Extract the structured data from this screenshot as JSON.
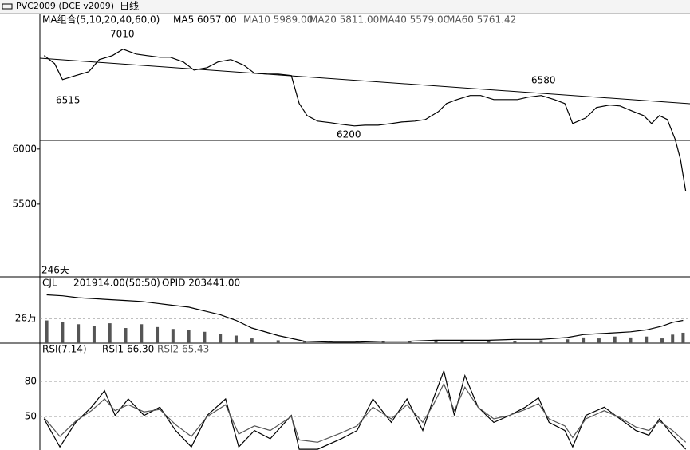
{
  "header": {
    "symbol": "PVC2009 (DCE v2009)",
    "period": "日线"
  },
  "main": {
    "indicator": "MA组合(5,10,20,40,60,0)",
    "legend": [
      "MA5 6057.00",
      "MA10 5989.00",
      "MA20 5811.00",
      "MA40 5579.00",
      "MA60 5761.42"
    ],
    "annotations": [
      "7010",
      "6515",
      "6580",
      "6200"
    ],
    "span": "246天"
  },
  "volume_panel": {
    "indicator": "CJL",
    "legend": [
      "201914.00(50:50)",
      "OPID 203441.00"
    ]
  },
  "rsi_panel": {
    "indicator": "RSI(7,14)",
    "legend": [
      "RSI1 66.30",
      "RSI2 65.43"
    ]
  },
  "chart_data": [
    {
      "type": "line",
      "xlim": [
        0,
        246
      ],
      "ylim": [
        4840,
        7230
      ],
      "yticks": [
        6000,
        5500
      ],
      "grid": false,
      "x": [
        1,
        5,
        8,
        13,
        18,
        22,
        27,
        31,
        36,
        40,
        45,
        49,
        54,
        58,
        63,
        67,
        72,
        77,
        81,
        86,
        90,
        95,
        98,
        101,
        105,
        110,
        114,
        119,
        123,
        128,
        133,
        137,
        142,
        146,
        151,
        154,
        158,
        163,
        167,
        172,
        176,
        181,
        185,
        190,
        195,
        199,
        202,
        207,
        211,
        216,
        220,
        225,
        229,
        232,
        235,
        238,
        241,
        243,
        245
      ],
      "series": [
        {
          "name": "close",
          "color": "#000000",
          "values": [
            6848,
            6775,
            6630,
            6667,
            6703,
            6812,
            6848,
            6906,
            6862,
            6848,
            6833,
            6833,
            6790,
            6717,
            6739,
            6790,
            6812,
            6761,
            6688,
            6681,
            6681,
            6667,
            6413,
            6304,
            6254,
            6239,
            6225,
            6210,
            6217,
            6217,
            6232,
            6246,
            6254,
            6268,
            6341,
            6413,
            6449,
            6486,
            6486,
            6449,
            6449,
            6449,
            6471,
            6486,
            6449,
            6413,
            6232,
            6283,
            6377,
            6399,
            6391,
            6341,
            6304,
            6232,
            6304,
            6268,
            6087,
            5906,
            5616
          ]
        }
      ]
    },
    {
      "type": "bar",
      "xlim": [
        0,
        246
      ],
      "ylim": [
        0,
        70
      ],
      "yticks": [
        {
          "value": 26,
          "label": "26万"
        }
      ],
      "grid": true,
      "x": [
        2,
        8,
        14,
        20,
        26,
        32,
        38,
        44,
        50,
        56,
        62,
        68,
        74,
        80,
        90,
        100,
        110,
        120,
        130,
        140,
        150,
        160,
        170,
        180,
        190,
        200,
        206,
        212,
        218,
        224,
        230,
        236,
        240,
        244
      ],
      "series": [
        {
          "name": "volume",
          "color": "#555555",
          "values": [
            24,
            22,
            20,
            18,
            21,
            16,
            20,
            17,
            15,
            14,
            12,
            10,
            8,
            5,
            3,
            2,
            2,
            2,
            2,
            2,
            2,
            2,
            2,
            2,
            3,
            4,
            6,
            5,
            7,
            6,
            7,
            5,
            9,
            11
          ]
        },
        {
          "name": "opid",
          "color": "#000000",
          "values": [
            51,
            50,
            48,
            47,
            46,
            45,
            44,
            42,
            40,
            38,
            34,
            30,
            24,
            16,
            8,
            2,
            1,
            1,
            2,
            2,
            3,
            3,
            3,
            4,
            4,
            6,
            9,
            10,
            11,
            12,
            14,
            18,
            22,
            24
          ]
        }
      ]
    },
    {
      "type": "line",
      "xlim": [
        0,
        246
      ],
      "ylim": [
        21.4,
        112.7
      ],
      "yticks": [
        80,
        50
      ],
      "grid": true,
      "x": [
        1,
        7,
        13,
        19,
        24,
        28,
        33,
        39,
        45,
        51,
        57,
        63,
        70,
        75,
        81,
        87,
        95,
        98,
        105,
        114,
        120,
        126,
        133,
        139,
        145,
        149,
        153,
        157,
        161,
        166,
        172,
        178,
        184,
        189,
        193,
        199,
        202,
        207,
        214,
        220,
        226,
        231,
        235,
        240,
        245
      ],
      "series": [
        {
          "name": "RSI1",
          "color": "#000000",
          "values": [
            48,
            24,
            45,
            58,
            72,
            51,
            65,
            51,
            58,
            38,
            24,
            51,
            65,
            24,
            38,
            31,
            51,
            22,
            22,
            31,
            38,
            65,
            45,
            65,
            38,
            65,
            89,
            51,
            85,
            58,
            45,
            51,
            58,
            66,
            45,
            38,
            24,
            51,
            58,
            48,
            38,
            34,
            48,
            34,
            22
          ]
        },
        {
          "name": "RSI2",
          "color": "#555555",
          "values": [
            49,
            33,
            46,
            55,
            65,
            55,
            60,
            54,
            56,
            43,
            33,
            50,
            60,
            35,
            42,
            38,
            50,
            30,
            28,
            36,
            42,
            58,
            48,
            60,
            45,
            60,
            78,
            55,
            75,
            58,
            48,
            51,
            56,
            61,
            48,
            42,
            32,
            48,
            55,
            49,
            41,
            38,
            46,
            38,
            28
          ]
        }
      ]
    }
  ]
}
